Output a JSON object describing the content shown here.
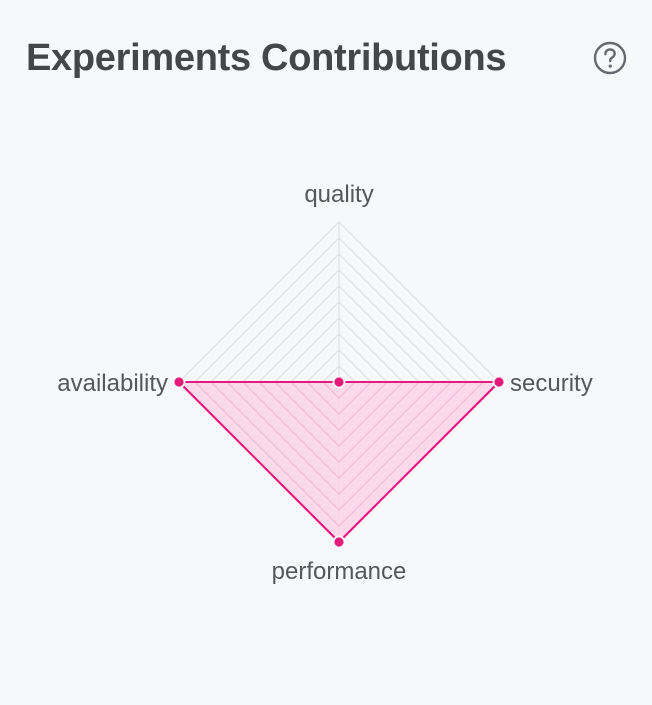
{
  "header": {
    "title": "Experiments Contributions",
    "help_icon": "question-circle-icon"
  },
  "chart_data": {
    "type": "radar",
    "axes": [
      "quality",
      "security",
      "performance",
      "availability"
    ],
    "series": [
      {
        "values": [
          0,
          1,
          1,
          1
        ],
        "color": "#e6197d",
        "fill": "#fbd3e6"
      }
    ],
    "range": [
      0,
      1
    ],
    "grid_levels": 10,
    "grid_color": "#dfe2e6",
    "label_color": "#555759"
  }
}
